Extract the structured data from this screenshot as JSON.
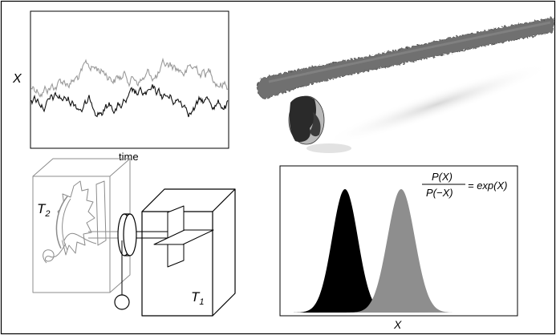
{
  "trace_panel": {
    "y_axis_label": "X",
    "x_axis_label": "time",
    "series_colors": {
      "light": "#9a9a9a",
      "dark": "#111111"
    }
  },
  "ratchet_panel": {
    "hot_bath_symbol": "T",
    "hot_bath_subscript": "2",
    "cold_bath_symbol": "T",
    "cold_bath_subscript": "1"
  },
  "distribution_panel": {
    "x_axis_label": "X",
    "formula": {
      "numerator": "P(X)",
      "denominator": "P(−X)",
      "rhs": "= exp(X)"
    },
    "curve_colors": {
      "negative": "#000000",
      "positive": "#8e8e8e"
    }
  },
  "protein_render": {
    "colors": {
      "filament": "#6f6f6f",
      "motor_dark": "#2a2a2a",
      "motor_light": "#b8b8b8"
    }
  }
}
